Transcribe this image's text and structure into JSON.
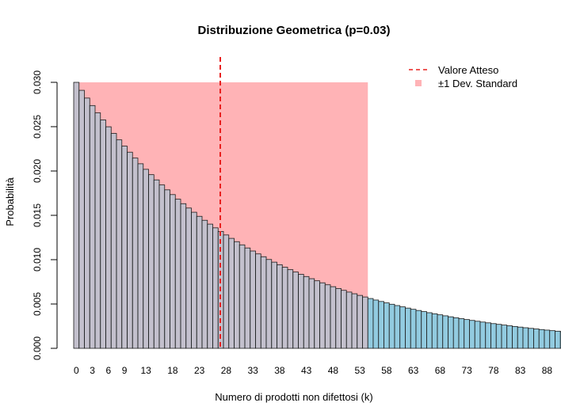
{
  "chart_data": {
    "type": "bar",
    "title": "Distribuzione Geometrica (p=0.03)",
    "xlabel": "Numero di prodotti non difettosi (k)",
    "ylabel": "Probabilità",
    "p": 0.03,
    "k_range": [
      0,
      91
    ],
    "ylim": [
      0,
      0.03
    ],
    "y_ticks": [
      "0.000",
      "0.005",
      "0.010",
      "0.015",
      "0.020",
      "0.025",
      "0.030"
    ],
    "x_tick_labels": [
      "0",
      "3",
      "6",
      "9",
      "13",
      "18",
      "23",
      "28",
      "33",
      "38",
      "43",
      "48",
      "53",
      "58",
      "63",
      "68",
      "73",
      "78",
      "83",
      "88"
    ],
    "expected_value": 32.33,
    "sd_band": [
      0,
      54
    ],
    "legend": {
      "position": "top-right",
      "items": [
        {
          "label": "Valore Atteso",
          "style": "dashed-line",
          "color": "#e8201f"
        },
        {
          "label": "±1 Dev. Standard",
          "style": "square",
          "color": "#ffb3b6"
        }
      ]
    },
    "colors": {
      "bar_fill": "#92cbe0",
      "bar_stroke": "#1a1a1a",
      "band": "#ffb3b6",
      "mean_line": "#e8201f"
    }
  }
}
